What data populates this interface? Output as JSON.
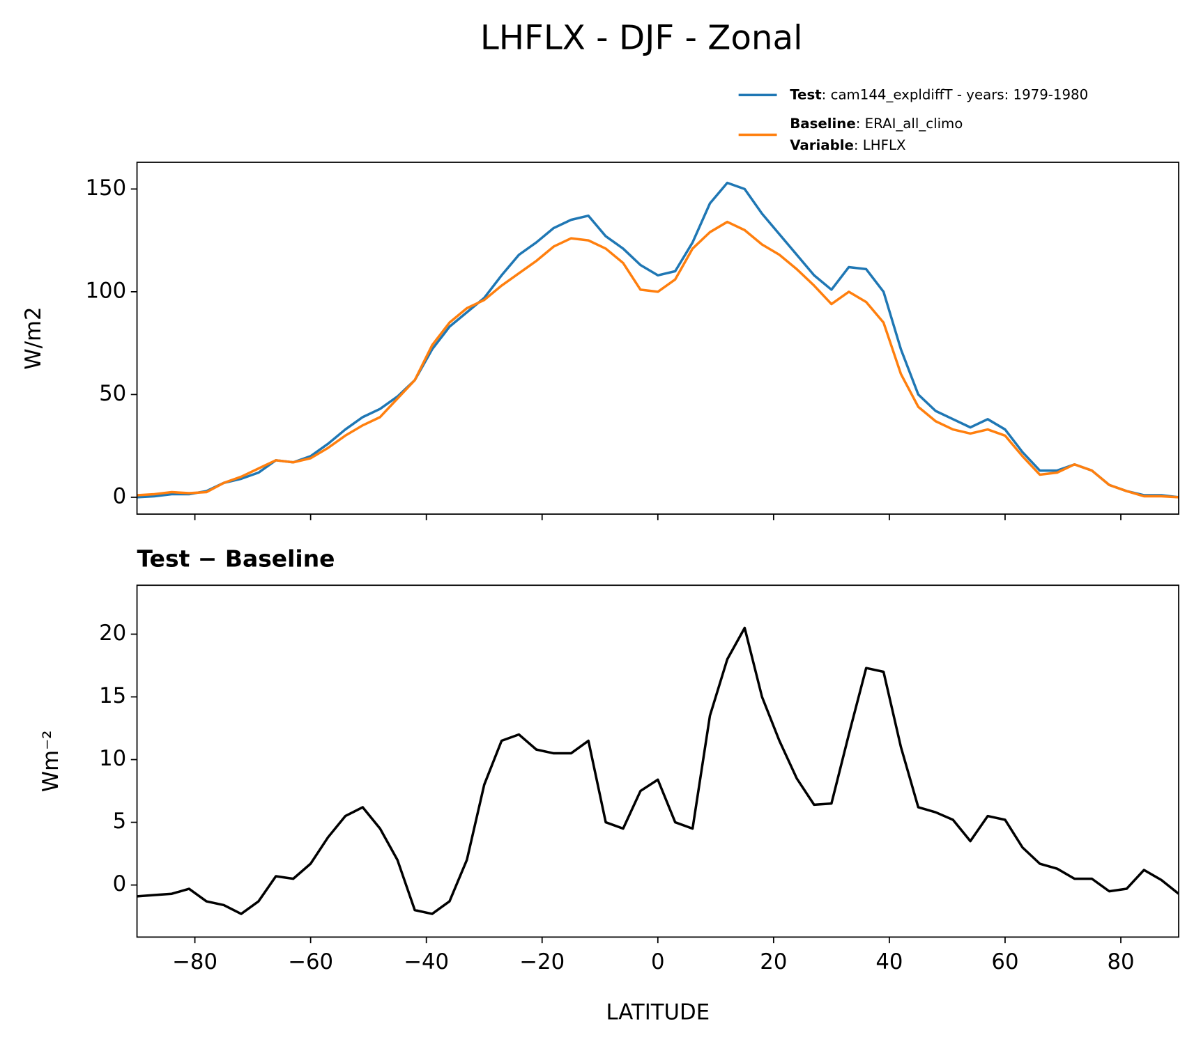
{
  "title": "LHFLX - DJF - Zonal",
  "chart_data": [
    {
      "type": "line",
      "ylabel": "W/m2",
      "x": [
        -90,
        -87,
        -84,
        -81,
        -78,
        -75,
        -72,
        -69,
        -66,
        -63,
        -60,
        -57,
        -54,
        -51,
        -48,
        -45,
        -42,
        -39,
        -36,
        -33,
        -30,
        -27,
        -24,
        -21,
        -18,
        -15,
        -12,
        -9,
        -6,
        -3,
        0,
        3,
        6,
        9,
        12,
        15,
        18,
        21,
        24,
        27,
        30,
        33,
        36,
        39,
        42,
        45,
        48,
        51,
        54,
        57,
        60,
        63,
        66,
        69,
        72,
        75,
        78,
        81,
        84,
        87,
        90
      ],
      "series": [
        {
          "name": "Test",
          "description": ": cam144_expldiffT - years: 1979-1980",
          "color": "#1f77b4",
          "values": [
            0,
            0.5,
            1.5,
            1.5,
            3,
            7,
            9,
            12,
            18,
            17,
            20,
            26,
            33,
            39,
            43,
            49,
            57,
            72,
            83,
            90,
            97,
            108,
            118,
            124,
            131,
            135,
            137,
            127,
            121,
            113,
            108,
            110,
            124,
            143,
            153,
            150,
            138,
            128,
            118,
            108,
            101,
            112,
            111,
            100,
            72,
            50,
            42,
            38,
            34,
            38,
            33,
            22,
            13,
            13,
            16,
            13,
            6,
            3,
            1,
            1,
            0
          ]
        },
        {
          "name": "Baseline",
          "description": ": ERAI_all_climo",
          "variable_label": "Variable",
          "variable": ": LHFLX",
          "color": "#ff7f0e",
          "values": [
            1,
            1.5,
            2.5,
            2,
            2.5,
            7,
            10,
            14,
            18,
            17,
            19,
            24,
            30,
            35,
            39,
            48,
            57,
            74,
            85,
            92,
            96,
            103,
            109,
            115,
            122,
            126,
            125,
            121,
            114,
            101,
            100,
            106,
            121,
            129,
            134,
            130,
            123,
            118,
            111,
            103,
            94,
            100,
            95,
            85,
            60,
            44,
            37,
            33,
            31,
            33,
            30,
            20,
            11,
            12,
            16,
            13,
            6,
            3,
            0.5,
            0.5,
            0
          ]
        }
      ],
      "xlim": [
        -90,
        90
      ],
      "xticks": [
        -80,
        -60,
        -40,
        -20,
        0,
        20,
        40,
        60,
        80
      ],
      "show_xticklabels": false,
      "ylim": [
        -8.2,
        163
      ],
      "yticks": [
        0,
        50,
        100,
        150
      ],
      "grid": false
    },
    {
      "type": "line",
      "title": "Test − Baseline",
      "ylabel": "Wm⁻²",
      "xlabel": "LATITUDE",
      "x": [
        -90,
        -87,
        -84,
        -81,
        -78,
        -75,
        -72,
        -69,
        -66,
        -63,
        -60,
        -57,
        -54,
        -51,
        -48,
        -45,
        -42,
        -39,
        -36,
        -33,
        -30,
        -27,
        -24,
        -21,
        -18,
        -15,
        -12,
        -9,
        -6,
        -3,
        0,
        3,
        6,
        9,
        12,
        15,
        18,
        21,
        24,
        27,
        30,
        33,
        36,
        39,
        42,
        45,
        48,
        51,
        54,
        57,
        60,
        63,
        66,
        69,
        72,
        75,
        78,
        81,
        84,
        87,
        90
      ],
      "series": [
        {
          "color": "#000000",
          "values": [
            -0.9,
            -0.8,
            -0.7,
            -0.3,
            -1.3,
            -1.6,
            -2.3,
            -1.3,
            0.7,
            0.5,
            1.7,
            3.8,
            5.5,
            6.2,
            4.5,
            2.0,
            -2.0,
            -2.3,
            -1.3,
            2,
            8,
            11.5,
            12,
            10.8,
            10.5,
            10.5,
            11.5,
            5,
            4.5,
            7.5,
            8.4,
            5,
            4.5,
            13.5,
            18,
            20.5,
            15,
            11.5,
            8.5,
            6.4,
            6.5,
            12,
            17.3,
            17,
            11,
            6.2,
            5.8,
            5.2,
            3.5,
            5.5,
            5.2,
            3,
            1.7,
            1.3,
            0.5,
            0.5,
            -0.5,
            -0.3,
            1.2,
            0.4,
            -0.7
          ]
        }
      ],
      "xlim": [
        -90,
        90
      ],
      "xticks": [
        {
          "value": -80,
          "label": "−80"
        },
        {
          "value": -60,
          "label": "−60"
        },
        {
          "value": -40,
          "label": "−40"
        },
        {
          "value": -20,
          "label": "−20"
        },
        0,
        20,
        40,
        60,
        80
      ],
      "show_xticklabels": true,
      "ylim": [
        -4.15,
        23.9
      ],
      "yticks": [
        0,
        5,
        10,
        15,
        20
      ],
      "grid": false
    }
  ]
}
